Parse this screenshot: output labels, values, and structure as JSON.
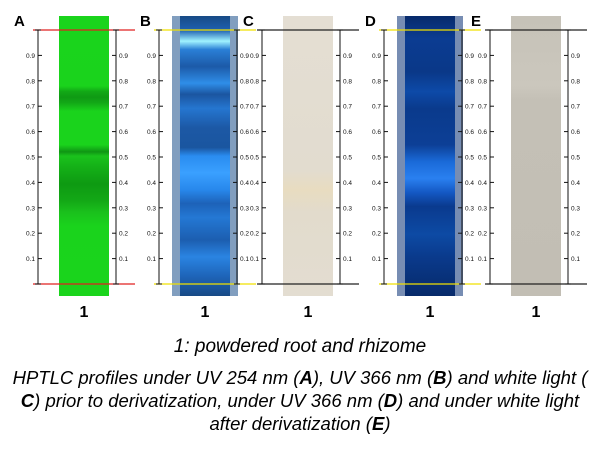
{
  "panels": [
    {
      "letter": "A",
      "lane_label": "1",
      "colors": {
        "base": "#1ad31c"
      }
    },
    {
      "letter": "B",
      "lane_label": "1",
      "colors": {
        "base": "#1a4f8a"
      }
    },
    {
      "letter": "C",
      "lane_label": "1",
      "colors": {
        "base": "#e3ddd1"
      }
    },
    {
      "letter": "D",
      "lane_label": "1",
      "colors": {
        "base": "#082f75"
      }
    },
    {
      "letter": "E",
      "lane_label": "1",
      "colors": {
        "base": "#c4c0b6"
      }
    }
  ],
  "scale_ticks": [
    "0.1",
    "0.2",
    "0.3",
    "0.4",
    "0.5",
    "0.6",
    "0.7",
    "0.8",
    "0.9"
  ],
  "caption_line1": "1: powdered root and rhizome",
  "caption_line2": {
    "p1": "HPTLC profiles under UV 254 nm (",
    "A": "A",
    "p2": "), UV 366 nm (",
    "B": "B",
    "p3": ") and white light (",
    "C": "C",
    "p4": ") prior to derivatization, under UV 366 nm (",
    "D": "D",
    "p5": ") and under white light after derivatization (",
    "E": "E",
    "p6": ")"
  }
}
